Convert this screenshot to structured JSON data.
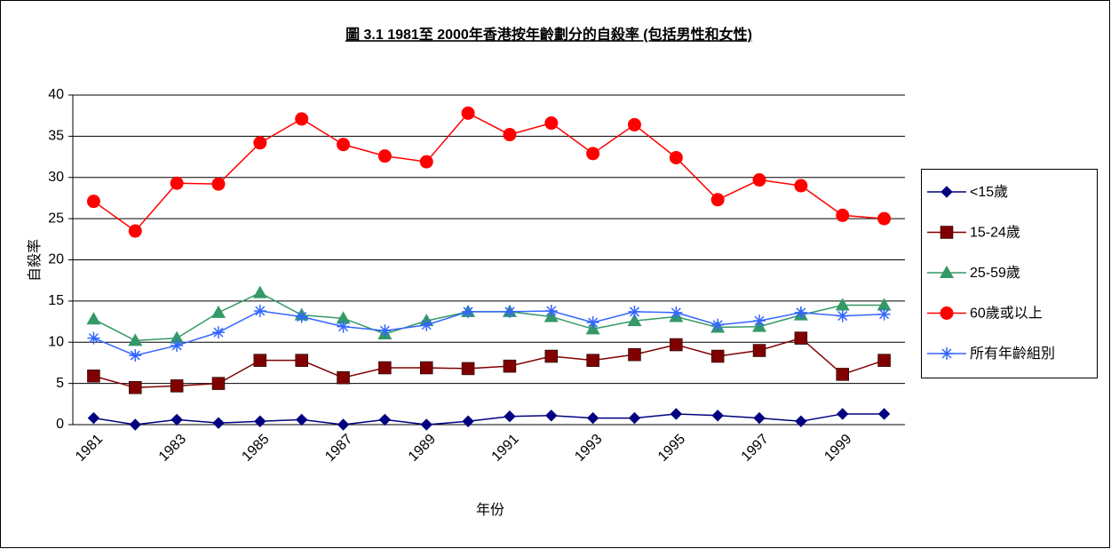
{
  "chart_data": {
    "type": "line",
    "title": "圖 3.1  1981至 2000年香港按年齡劃分的自殺率 (包括男性和女性)",
    "y_label": "自殺率",
    "x_label": "年份",
    "categories": [
      "1981",
      null,
      "1983",
      null,
      "1985",
      null,
      "1987",
      null,
      "1989",
      null,
      "1991",
      null,
      "1993",
      null,
      "1995",
      null,
      "1997",
      null,
      "1999",
      null
    ],
    "ylim": [
      0,
      40
    ],
    "yticks": [
      0,
      5,
      10,
      15,
      20,
      25,
      30,
      35,
      40
    ],
    "grid": true,
    "legend": "right",
    "series": [
      {
        "name": "<15歲",
        "color": "#000080",
        "marker": "diamond",
        "values": [
          0.8,
          0,
          0.6,
          0.2,
          0.4,
          0.6,
          0,
          0.6,
          0,
          0.4,
          1.0,
          1.1,
          0.8,
          0.8,
          1.3,
          1.1,
          0.8,
          0.4,
          1.3,
          1.3
        ]
      },
      {
        "name": "15-24歲",
        "color": "#800000",
        "marker": "square",
        "values": [
          5.9,
          4.5,
          4.7,
          5.0,
          7.8,
          7.8,
          5.7,
          6.9,
          6.9,
          6.8,
          7.1,
          8.3,
          7.8,
          8.5,
          9.7,
          8.3,
          9.0,
          10.5,
          6.1,
          7.8
        ]
      },
      {
        "name": "25-59歲",
        "color": "#339966",
        "marker": "triangle",
        "values": [
          12.8,
          10.2,
          10.5,
          13.6,
          16.0,
          13.3,
          12.9,
          11.0,
          12.6,
          13.7,
          13.7,
          13.1,
          11.6,
          12.6,
          13.1,
          11.8,
          11.9,
          13.3,
          14.5,
          14.5
        ]
      },
      {
        "name": "60歲或以上",
        "color": "#ff0000",
        "marker": "circle",
        "values": [
          27.1,
          23.5,
          29.3,
          29.2,
          34.2,
          37.1,
          34.0,
          32.6,
          31.9,
          37.8,
          35.2,
          36.6,
          32.9,
          36.4,
          32.4,
          27.3,
          29.7,
          29.0,
          25.4,
          25.0
        ]
      },
      {
        "name": "所有年齡組別",
        "color": "#3366ff",
        "marker": "asterisk",
        "values": [
          10.5,
          8.4,
          9.6,
          11.2,
          13.8,
          13.1,
          11.9,
          11.4,
          12.1,
          13.7,
          13.7,
          13.8,
          12.4,
          13.7,
          13.6,
          12.1,
          12.6,
          13.6,
          13.2,
          13.4
        ]
      }
    ]
  }
}
